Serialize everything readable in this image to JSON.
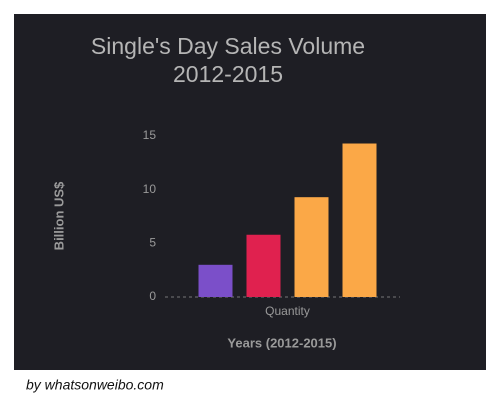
{
  "chart_data": {
    "type": "bar",
    "title": [
      "Single's Day Sales Volume",
      "2012-2015"
    ],
    "y_label": "Billion US$",
    "x_label": "Years (2012-2015)",
    "categories": [
      "Quantity"
    ],
    "series": [
      {
        "color": "#7b4fc9",
        "values": [
          3.0
        ]
      },
      {
        "color": "#e0214f",
        "values": [
          5.8
        ]
      },
      {
        "color": "#fba847",
        "values": [
          9.3
        ]
      },
      {
        "color": "#fba847",
        "values": [
          14.3
        ]
      }
    ],
    "ylim": [
      0,
      15
    ],
    "yticks": [
      0,
      5,
      10,
      15
    ],
    "grid": false
  },
  "caption": "by whatsonweibo.com"
}
